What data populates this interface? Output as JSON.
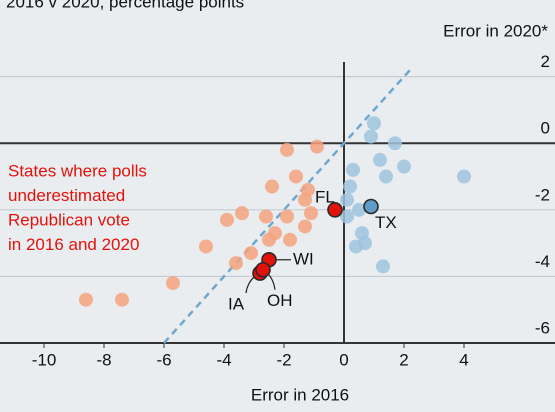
{
  "chart_data": {
    "type": "scatter",
    "subtitle": "2016 v 2020, percentage points",
    "x_label": "Error in 2016",
    "y_label": "Error in 2020*",
    "annotation": [
      "States where polls",
      "underestimated",
      "Republican vote",
      "in 2016 and 2020"
    ],
    "xlim": [
      -11,
      7
    ],
    "xticks": [
      -10,
      -8,
      -6,
      -4,
      -2,
      0,
      2,
      4
    ],
    "ylim": [
      -6,
      2.2
    ],
    "yticks": [
      -6,
      -4,
      -2,
      0,
      2
    ],
    "grid": true,
    "series": [
      {
        "color": "#9dc3de",
        "x": [
          1.0,
          0.9,
          1.7,
          0.3,
          1.2,
          2.0,
          4.0,
          0.2,
          1.4,
          0.5,
          0.1,
          0.1,
          0.6,
          0.4,
          0.7,
          1.3
        ],
        "values": [
          0.6,
          0.2,
          0.0,
          -0.8,
          -0.5,
          -0.7,
          -1.0,
          -1.3,
          -1.0,
          -2.0,
          -1.7,
          -2.2,
          -2.7,
          -3.1,
          -3.0,
          -3.7
        ]
      },
      {
        "color": "#f5a27e",
        "x": [
          -0.9,
          -1.9,
          -1.6,
          -2.4,
          -2.6,
          -1.2,
          -1.3,
          -1.1,
          -1.3,
          -1.9,
          -1.8,
          -2.3,
          -2.5,
          -3.1,
          -3.9,
          -3.4,
          -3.6,
          -4.6,
          -5.7,
          -7.4,
          -8.6
        ],
        "values": [
          -0.1,
          -0.2,
          -1.0,
          -1.3,
          -2.2,
          -1.4,
          -1.7,
          -2.1,
          -2.5,
          -2.2,
          -2.9,
          -2.7,
          -2.9,
          -3.3,
          -2.3,
          -2.1,
          -3.6,
          -3.1,
          -4.2,
          -4.7,
          -4.7
        ]
      },
      {
        "color": "#5f9cc7",
        "x": [
          0.9
        ],
        "values": [
          -1.9
        ],
        "labels": [
          "TX"
        ]
      },
      {
        "color": "#e3120b",
        "x": [
          -0.3,
          -2.5,
          -2.8,
          -2.7
        ],
        "values": [
          -2.0,
          -3.5,
          -3.9,
          -3.8
        ],
        "labels": [
          "FL",
          "WI",
          "IA",
          "OH"
        ]
      }
    ]
  }
}
